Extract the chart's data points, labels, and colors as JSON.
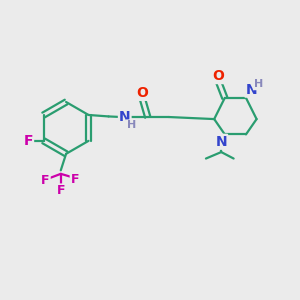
{
  "bg_color": "#ebebeb",
  "bond_color": "#2a9d70",
  "bond_width": 1.6,
  "atom_colors": {
    "O": "#ee2200",
    "N": "#3344cc",
    "F": "#cc00aa",
    "H": "#8888bb",
    "C": "#2a9d70"
  },
  "fs_large": 10,
  "fs_medium": 9,
  "fs_small": 8
}
